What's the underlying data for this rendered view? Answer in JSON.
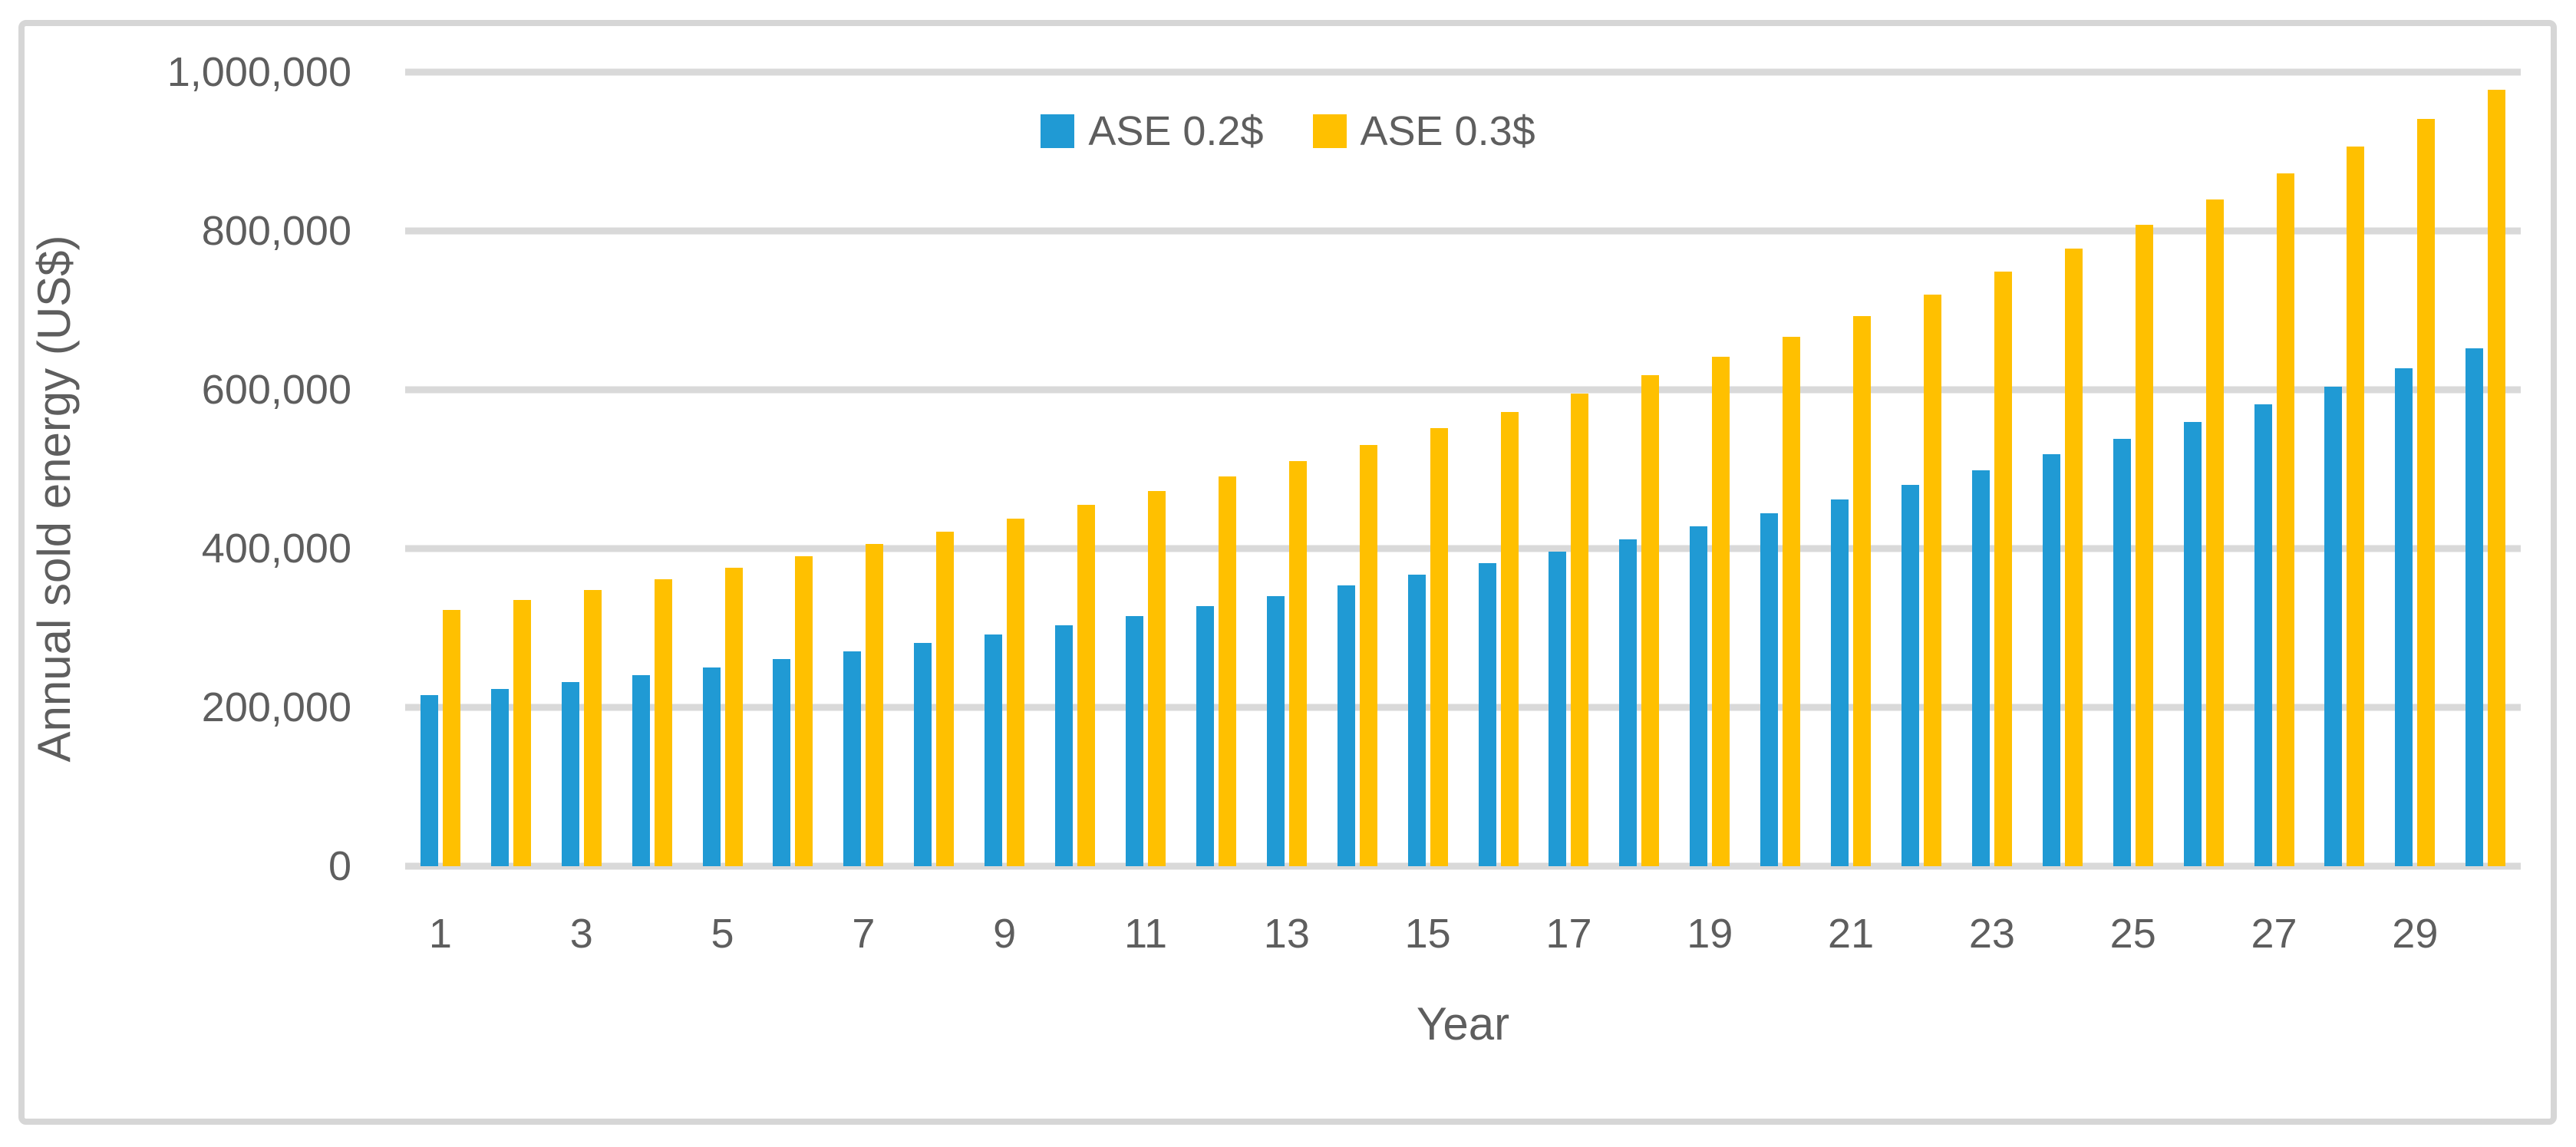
{
  "figure": {
    "background_color": "#ffffff",
    "border_color": "#d6d6d6",
    "gridline_color": "#d9d9d9",
    "text_color": "#5e5e5e"
  },
  "chart_data": {
    "type": "bar",
    "title": "",
    "xlabel": "Year",
    "ylabel": "Annual sold energy (US$)",
    "categories": [
      1,
      2,
      3,
      4,
      5,
      6,
      7,
      8,
      9,
      10,
      11,
      12,
      13,
      14,
      15,
      16,
      17,
      18,
      19,
      20,
      21,
      22,
      23,
      24,
      25,
      26,
      27,
      28,
      29,
      30
    ],
    "x_tick_labels": [
      "1",
      "",
      "3",
      "",
      "5",
      "",
      "7",
      "",
      "9",
      "",
      "11",
      "",
      "13",
      "",
      "15",
      "",
      "17",
      "",
      "19",
      "",
      "21",
      "",
      "23",
      "",
      "25",
      "",
      "27",
      "",
      "29",
      ""
    ],
    "series": [
      {
        "name": "ASE 0.2$",
        "color": "#209ad4",
        "values": [
          215000,
          223500,
          232000,
          241000,
          250500,
          260500,
          270500,
          281000,
          292000,
          303500,
          315000,
          327500,
          340000,
          353500,
          367500,
          381500,
          396500,
          412000,
          428000,
          444500,
          462000,
          480000,
          499000,
          518500,
          538500,
          559500,
          581500,
          604000,
          627500,
          652000
        ]
      },
      {
        "name": "ASE 0.3$",
        "color": "#ffc000",
        "values": [
          322500,
          335250,
          348000,
          361500,
          375750,
          390750,
          405750,
          421500,
          438000,
          455250,
          472500,
          491250,
          510000,
          530250,
          551250,
          572250,
          594750,
          618000,
          642000,
          666750,
          693000,
          720000,
          748500,
          777750,
          807750,
          839250,
          872250,
          906000,
          941250,
          978000
        ]
      }
    ],
    "ylim": [
      0,
      1000000
    ],
    "y_ticks": [
      {
        "value": 0,
        "label": "0"
      },
      {
        "value": 200000,
        "label": "200,000"
      },
      {
        "value": 400000,
        "label": "400,000"
      },
      {
        "value": 600000,
        "label": "600,000"
      },
      {
        "value": 800000,
        "label": "800,000"
      },
      {
        "value": 1000000,
        "label": "1,000,000"
      }
    ],
    "grid": "horizontal",
    "legend_position": "top-center"
  }
}
